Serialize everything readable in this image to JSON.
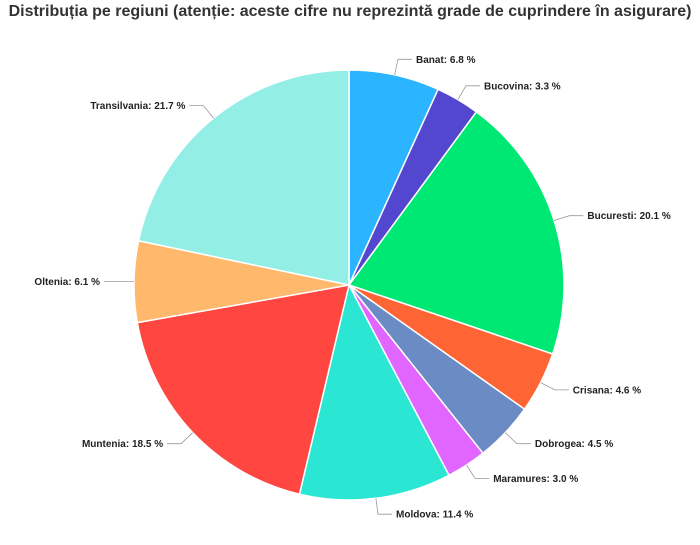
{
  "chart_data": {
    "type": "pie",
    "title": "Distribuția pe regiuni (atenție: aceste cifre nu reprezintă grade de cuprindere în asigurare)",
    "slices": [
      {
        "name": "Banat",
        "value": 6.8,
        "label": "Banat: 6.8 %",
        "color": "#2bb4ff"
      },
      {
        "name": "Bucovina",
        "value": 3.3,
        "label": "Bucovina: 3.3 %",
        "color": "#5347cf"
      },
      {
        "name": "Bucuresti",
        "value": 20.1,
        "label": "Bucuresti: 20.1 %",
        "color": "#00e874"
      },
      {
        "name": "Crisana",
        "value": 4.6,
        "label": "Crisana: 4.6 %",
        "color": "#ff6534"
      },
      {
        "name": "Dobrogea",
        "value": 4.5,
        "label": "Dobrogea: 4.5 %",
        "color": "#6a8bc4"
      },
      {
        "name": "Maramures",
        "value": 3.0,
        "label": "Maramures: 3.0 %",
        "color": "#e066ff"
      },
      {
        "name": "Moldova",
        "value": 11.4,
        "label": "Moldova: 11.4 %",
        "color": "#2ae6d2"
      },
      {
        "name": "Muntenia",
        "value": 18.5,
        "label": "Muntenia: 18.5 %",
        "color": "#ff4640"
      },
      {
        "name": "Oltenia",
        "value": 6.1,
        "label": "Oltenia: 6.1 %",
        "color": "#ffb86c"
      },
      {
        "name": "Transilvania",
        "value": 21.7,
        "label": "Transilvania: 21.7 %",
        "color": "#93efe6"
      }
    ]
  }
}
